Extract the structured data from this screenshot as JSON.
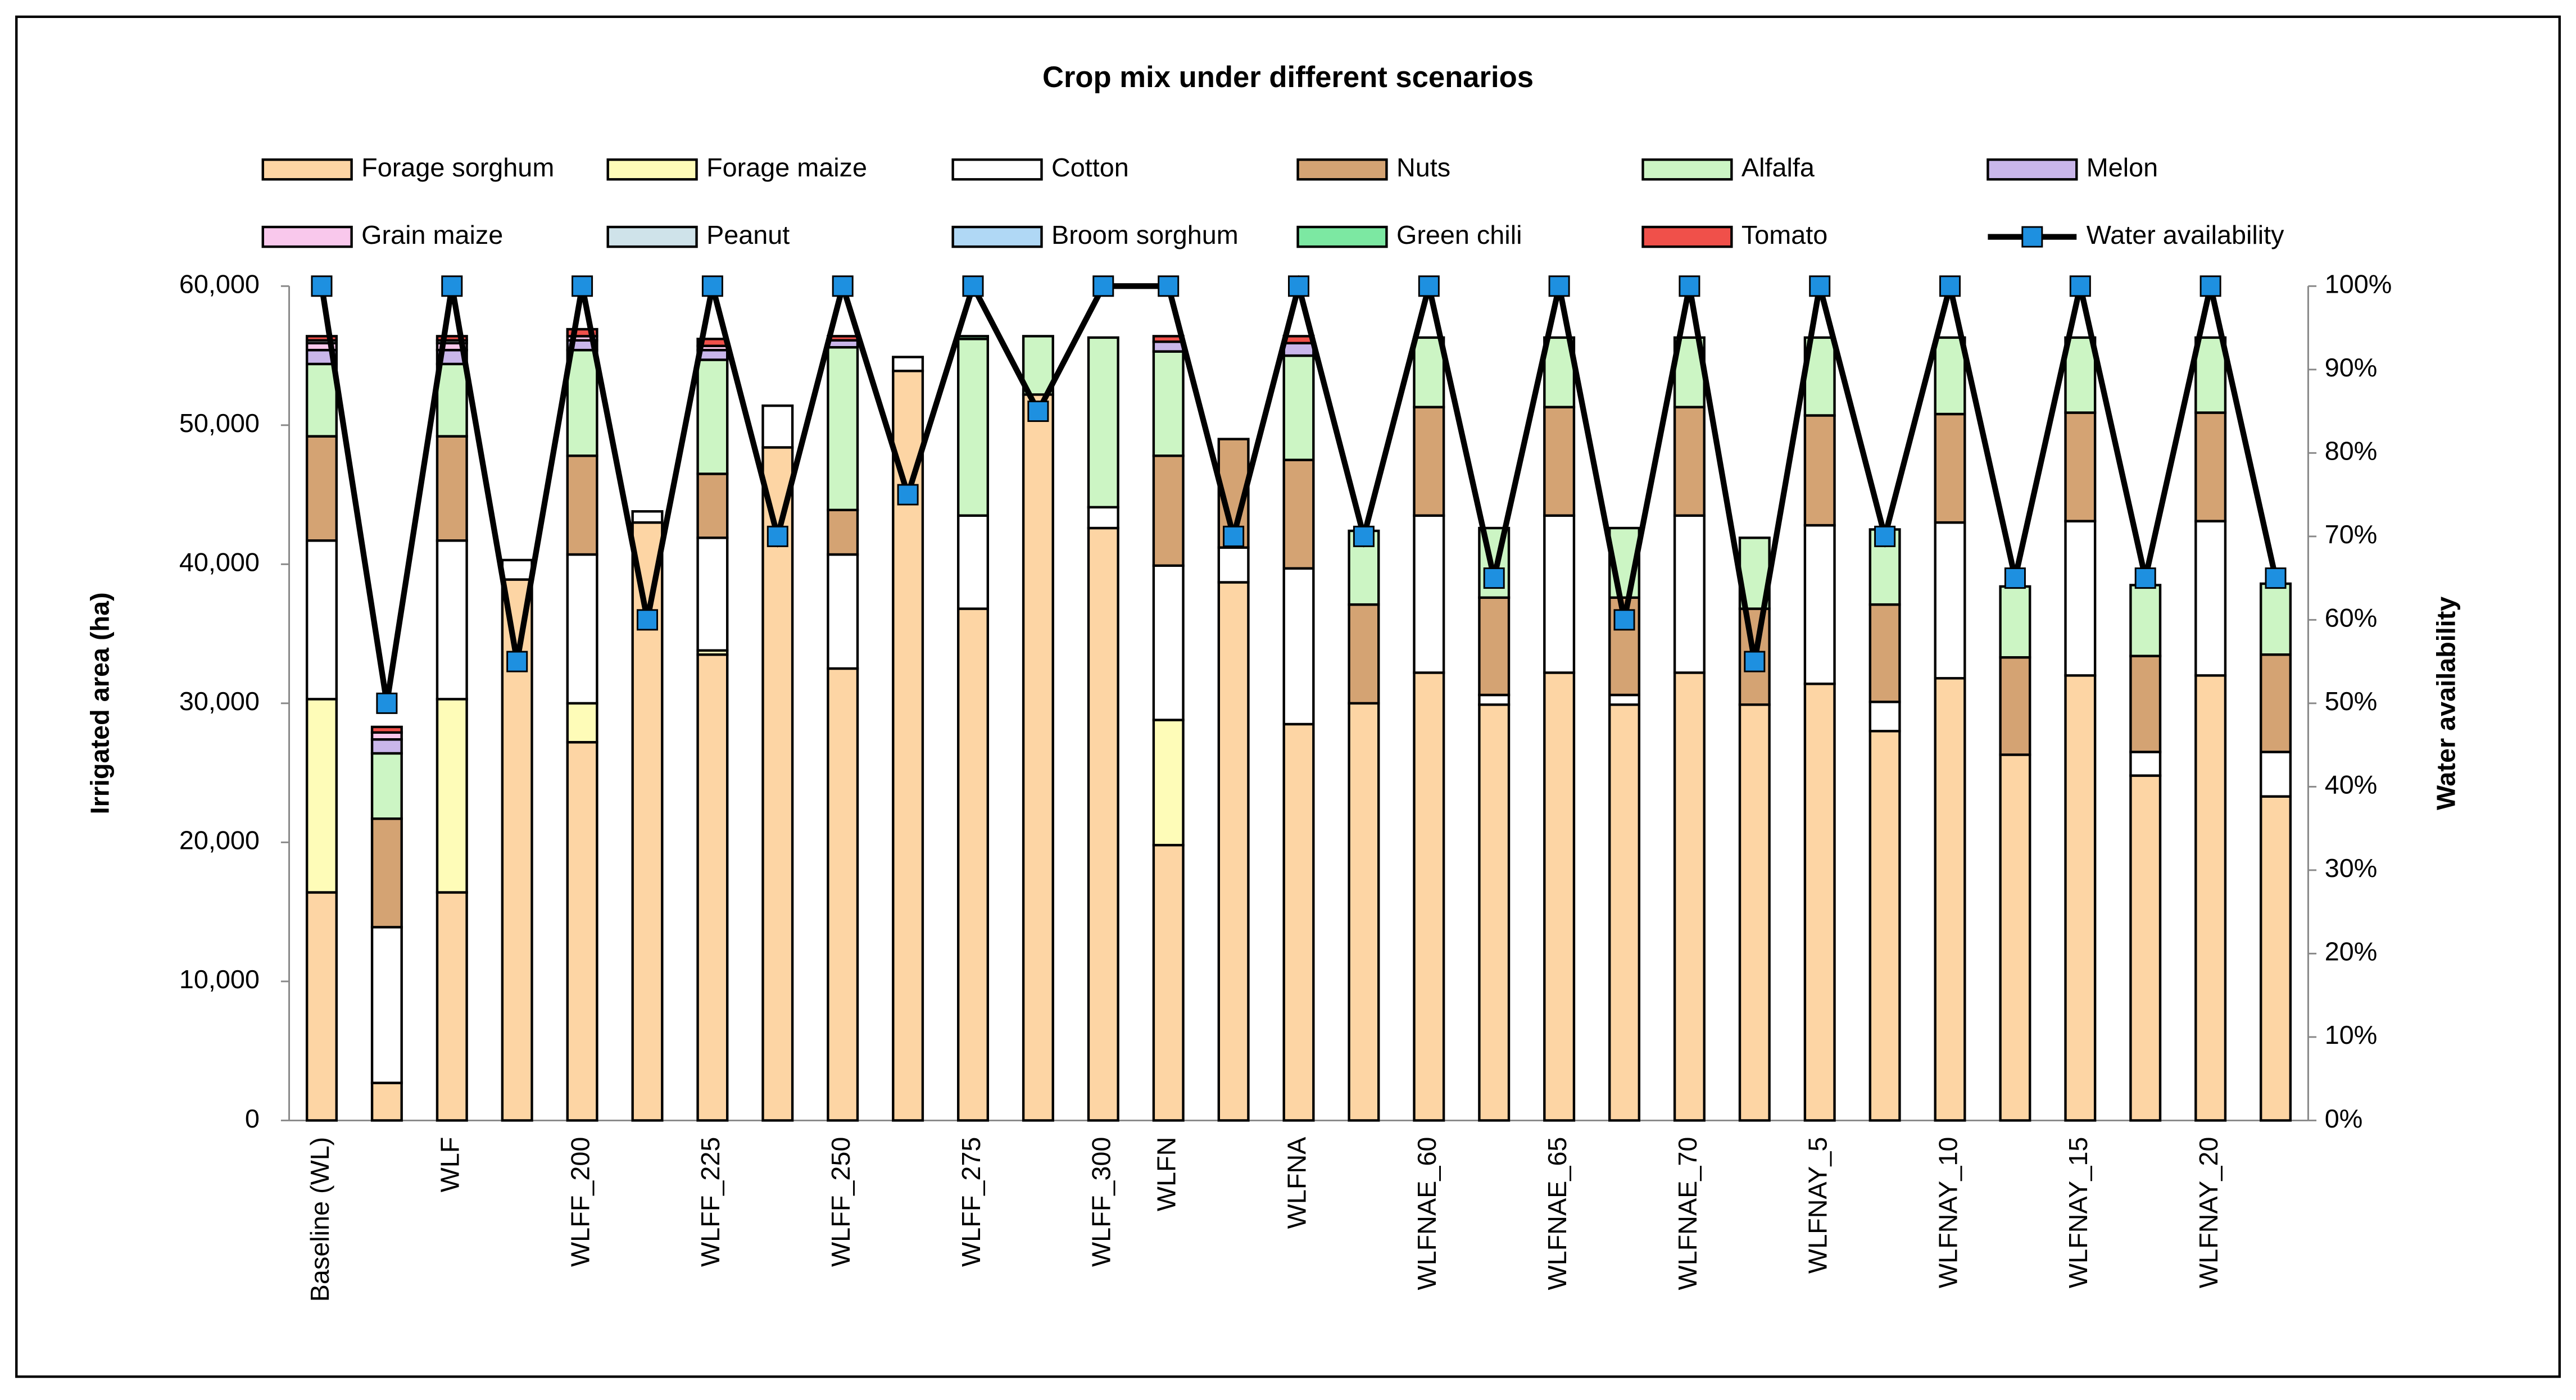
{
  "chart_data": {
    "type": "stacked_bar_line",
    "title": "Crop mix under different scenarios",
    "y_label": "Irrigated area (ha)",
    "y2_label": "Water availability",
    "categories": [
      "Baseline (WL)",
      null,
      "WLF",
      null,
      "WLFF_200",
      null,
      "WLFF_225",
      null,
      "WLFF_250",
      null,
      "WLFF_275",
      null,
      "WLFF_300",
      "WLFN",
      null,
      "WLFNA",
      null,
      "WLFNAE_60",
      null,
      "WLFNAE_65",
      null,
      "WLFNAE_70",
      null,
      "WLFNAY_5",
      null,
      "WLFNAY_10",
      null,
      "WLFNAY_15",
      null,
      "WLFNAY_20",
      null
    ],
    "series": [
      {
        "name": "Forage sorghum",
        "color": "#fdd5a4",
        "values": [
          16400,
          2700,
          16400,
          38900,
          27200,
          43000,
          33500,
          48400,
          32500,
          53900,
          36800,
          52200,
          42600,
          19800,
          38700,
          28500,
          30000,
          32200,
          29900,
          32200,
          29900,
          32200,
          29900,
          31400,
          28000,
          31800,
          26300,
          32000,
          24800,
          32000,
          23300
        ]
      },
      {
        "name": "Forage maize",
        "color": "#fefcb8",
        "values": [
          13900,
          0,
          13900,
          0,
          2800,
          0,
          300,
          0,
          0,
          0,
          0,
          0,
          0,
          9000,
          0,
          0,
          0,
          0,
          0,
          0,
          0,
          0,
          0,
          0,
          0,
          0,
          0,
          0,
          0,
          0,
          0
        ]
      },
      {
        "name": "Cotton",
        "color": "#ffffff",
        "values": [
          11400,
          11200,
          11400,
          1400,
          10700,
          800,
          8100,
          3000,
          8200,
          1000,
          6700,
          0,
          1500,
          11100,
          2500,
          11200,
          0,
          11300,
          700,
          11300,
          700,
          11300,
          0,
          11400,
          2100,
          11200,
          0,
          11100,
          1700,
          11100,
          3200
        ]
      },
      {
        "name": "Nuts",
        "color": "#d4a373",
        "values": [
          7500,
          7800,
          7500,
          0,
          7100,
          0,
          4600,
          0,
          3200,
          0,
          0,
          0,
          0,
          7900,
          7800,
          7800,
          7100,
          7800,
          7000,
          7800,
          7000,
          7800,
          6900,
          7900,
          7000,
          7800,
          7000,
          7800,
          6900,
          7800,
          7000
        ]
      },
      {
        "name": "Alfalfa",
        "color": "#ccf5c4",
        "values": [
          5200,
          4700,
          5200,
          0,
          7600,
          0,
          8200,
          0,
          11700,
          0,
          12700,
          4200,
          12200,
          7500,
          0,
          7500,
          5300,
          5000,
          5000,
          5000,
          5000,
          5000,
          5100,
          5600,
          5400,
          5500,
          5100,
          5400,
          5100,
          5400,
          5100
        ]
      },
      {
        "name": "Melon",
        "color": "#c9b6ea",
        "values": [
          1000,
          1000,
          1000,
          0,
          700,
          0,
          700,
          0,
          500,
          0,
          0,
          0,
          0,
          700,
          0,
          900,
          0,
          0,
          0,
          0,
          0,
          0,
          0,
          0,
          0,
          0,
          0,
          0,
          0,
          0,
          0
        ]
      },
      {
        "name": "Grain maize",
        "color": "#f9c8ec",
        "values": [
          500,
          500,
          500,
          0,
          300,
          0,
          300,
          0,
          0,
          0,
          0,
          0,
          0,
          0,
          0,
          0,
          0,
          0,
          0,
          0,
          0,
          0,
          0,
          0,
          0,
          0,
          0,
          0,
          0,
          0,
          0
        ]
      },
      {
        "name": "Peanut",
        "color": "#cfe3ea",
        "values": [
          200,
          0,
          200,
          0,
          0,
          0,
          0,
          0,
          0,
          0,
          0,
          0,
          0,
          0,
          0,
          0,
          0,
          0,
          0,
          0,
          0,
          0,
          0,
          0,
          0,
          0,
          0,
          0,
          0,
          0,
          0
        ]
      },
      {
        "name": "Broom sorghum",
        "color": "#b0d8f5",
        "values": [
          0,
          0,
          0,
          0,
          0,
          0,
          0,
          0,
          0,
          0,
          0,
          0,
          0,
          0,
          0,
          0,
          0,
          0,
          0,
          0,
          0,
          0,
          0,
          0,
          0,
          0,
          0,
          0,
          0,
          0,
          0
        ]
      },
      {
        "name": "Green chili",
        "color": "#7ce8a2",
        "values": [
          0,
          0,
          0,
          0,
          0,
          0,
          0,
          0,
          0,
          0,
          200,
          0,
          0,
          0,
          0,
          0,
          0,
          0,
          0,
          0,
          0,
          0,
          0,
          0,
          0,
          0,
          0,
          0,
          0,
          0,
          0
        ]
      },
      {
        "name": "Tomato",
        "color": "#f0504a",
        "values": [
          300,
          400,
          300,
          0,
          500,
          0,
          500,
          0,
          300,
          0,
          0,
          0,
          0,
          400,
          0,
          500,
          0,
          0,
          0,
          0,
          0,
          0,
          0,
          0,
          0,
          0,
          0,
          0,
          0,
          0,
          0
        ]
      },
      {
        "name": "Water availability",
        "color": "#000000",
        "marker_color": "#1e90e0",
        "axis": "y2",
        "type": "line",
        "values": [
          100,
          50,
          100,
          55,
          100,
          60,
          100,
          70,
          100,
          75,
          100,
          85,
          100,
          100,
          70,
          100,
          70,
          100,
          65,
          100,
          60,
          100,
          55,
          100,
          70,
          100,
          65,
          100,
          65,
          100,
          65
        ]
      }
    ],
    "ylim": [
      0,
      60000
    ],
    "yticks": [
      0,
      {
        "value": 10000,
        "label": "10,000"
      },
      {
        "value": 20000,
        "label": "20,000"
      },
      {
        "value": 30000,
        "label": "30,000"
      },
      {
        "value": 40000,
        "label": "40,000"
      },
      {
        "value": 50000,
        "label": "50,000"
      },
      {
        "value": 60000,
        "label": "60,000"
      }
    ],
    "y2lim": [
      0,
      100
    ],
    "y2ticks": [
      {
        "value": 0,
        "label": "0%"
      },
      {
        "value": 10,
        "label": "10%"
      },
      {
        "value": 20,
        "label": "20%"
      },
      {
        "value": 30,
        "label": "30%"
      },
      {
        "value": 40,
        "label": "40%"
      },
      {
        "value": 50,
        "label": "50%"
      },
      {
        "value": 60,
        "label": "60%"
      },
      {
        "value": 70,
        "label": "70%"
      },
      {
        "value": 80,
        "label": "80%"
      },
      {
        "value": 90,
        "label": "90%"
      },
      {
        "value": 100,
        "label": "100%"
      }
    ],
    "legend": "top",
    "grid": false
  }
}
